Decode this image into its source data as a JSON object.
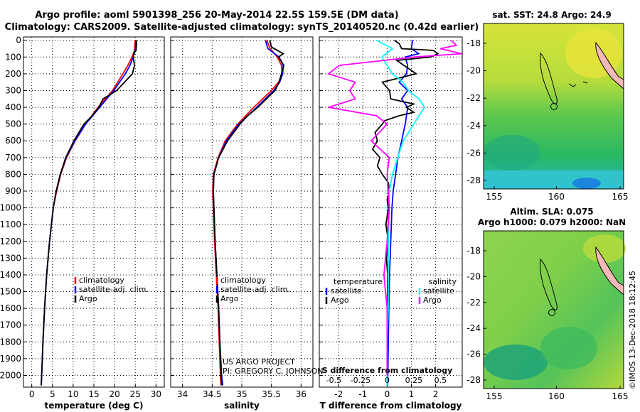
{
  "header": {
    "title_line1": "Argo profile: aoml 5901398_256 20-May-2014 22.5S 159.5E (DM data)",
    "title_line2": "Climatology: CARS2009. Satellite-adjusted climatology: synTS_20140520.nc (0.42d earlier)"
  },
  "colors": {
    "argo": "#000000",
    "climatology": "#ff0000",
    "satellite": "#0000ff",
    "sal_satellite": "#00ffff",
    "sal_argo": "#ff00ff",
    "coast": "#000000"
  },
  "pressure_ticks": [
    0,
    100,
    200,
    300,
    400,
    500,
    600,
    700,
    800,
    900,
    1000,
    1100,
    1200,
    1300,
    1400,
    1500,
    1600,
    1700,
    1800,
    1900,
    2000
  ],
  "chart_data": [
    {
      "type": "line",
      "name": "temperature",
      "xlabel": "temperature (deg C)",
      "ylabel": "pressure",
      "xlim": [
        -2,
        32
      ],
      "ylim": [
        2070,
        -20
      ],
      "xticks": [
        0,
        5,
        10,
        15,
        20,
        25,
        30
      ],
      "legend": {
        "placement": "lower-right",
        "entries": [
          "climatology",
          "satellite-adj. clim.",
          "Argo"
        ]
      },
      "series": [
        {
          "name": "climatology",
          "color_key": "climatology",
          "p": [
            0,
            20,
            60,
            100,
            150,
            200,
            300,
            400,
            500,
            600,
            700,
            800,
            900,
            1000,
            1200,
            1400,
            1600,
            1800,
            2000,
            2060
          ],
          "v": [
            25,
            24.9,
            24.8,
            24.2,
            23.2,
            22,
            19.5,
            16,
            13,
            10.5,
            8.4,
            7,
            6,
            5.2,
            4.3,
            3.6,
            3.1,
            2.7,
            2.4,
            2.3
          ]
        },
        {
          "name": "satellite-adj. clim.",
          "color_key": "satellite",
          "p": [
            0,
            20,
            60,
            100,
            150,
            200,
            300,
            400,
            500,
            600,
            700,
            800,
            900,
            1000,
            1200,
            1400,
            1600,
            1800,
            2000,
            2060
          ],
          "v": [
            25.2,
            25.1,
            25,
            24.5,
            23.7,
            22.6,
            19.8,
            16.4,
            13,
            10.4,
            8.3,
            6.9,
            5.9,
            5.2,
            4.3,
            3.6,
            3.1,
            2.7,
            2.4,
            2.3
          ]
        },
        {
          "name": "Argo",
          "color_key": "argo",
          "p": [
            0,
            20,
            60,
            80,
            100,
            150,
            200,
            300,
            350,
            400,
            450,
            500,
            600,
            700,
            800,
            900,
            1000,
            1200,
            1400,
            1600,
            1800,
            2000,
            2060
          ],
          "v": [
            25.3,
            25.3,
            25.2,
            24.6,
            24.5,
            24.8,
            24.3,
            20.5,
            17.2,
            16.2,
            14.6,
            12.6,
            10.2,
            8.2,
            6.9,
            5.9,
            5.2,
            4.3,
            3.6,
            3.1,
            2.7,
            2.4,
            2.3
          ]
        }
      ]
    },
    {
      "type": "line",
      "name": "salinity",
      "xlabel": "salinity",
      "ylabel": "pressure",
      "xlim": [
        33.8,
        36.2
      ],
      "ylim": [
        2070,
        -20
      ],
      "xticks": [
        34,
        34.5,
        35,
        35.5,
        36
      ],
      "xtick_labels": [
        "34",
        "34.5",
        "35",
        "35.5",
        "36"
      ],
      "legend": {
        "placement": "lower-right",
        "entries": [
          "climatology",
          "satellite-adj. clim.",
          "Argo"
        ]
      },
      "series": [
        {
          "name": "climatology",
          "color_key": "climatology",
          "p": [
            0,
            50,
            100,
            150,
            200,
            250,
            300,
            400,
            500,
            600,
            700,
            800,
            900,
            1000,
            1200,
            1400,
            1600,
            1800,
            2000,
            2060
          ],
          "v": [
            35.42,
            35.48,
            35.6,
            35.67,
            35.68,
            35.62,
            35.5,
            35.2,
            34.93,
            34.72,
            34.6,
            34.52,
            34.51,
            34.52,
            34.54,
            34.57,
            34.6,
            34.62,
            34.64,
            34.65
          ]
        },
        {
          "name": "satellite-adj. clim.",
          "color_key": "satellite",
          "p": [
            0,
            50,
            100,
            150,
            200,
            250,
            300,
            400,
            500,
            600,
            700,
            800,
            900,
            1000,
            1200,
            1400,
            1600,
            1800,
            2000,
            2060
          ],
          "v": [
            35.4,
            35.44,
            35.63,
            35.7,
            35.69,
            35.64,
            35.54,
            35.25,
            34.95,
            34.74,
            34.61,
            34.53,
            34.52,
            34.53,
            34.55,
            34.58,
            34.61,
            34.63,
            34.66,
            34.68
          ]
        },
        {
          "name": "Argo",
          "color_key": "argo",
          "p": [
            0,
            40,
            80,
            100,
            150,
            200,
            250,
            300,
            400,
            450,
            500,
            600,
            700,
            800,
            900,
            1000,
            1200,
            1400,
            1600,
            1800,
            2000,
            2060
          ],
          "v": [
            35.47,
            35.5,
            35.7,
            35.62,
            35.71,
            35.67,
            35.63,
            35.56,
            35.27,
            35.1,
            34.97,
            34.76,
            34.61,
            34.53,
            34.52,
            34.53,
            34.55,
            34.58,
            34.61,
            34.63,
            34.65,
            34.66
          ]
        }
      ]
    },
    {
      "type": "line",
      "name": "difference_from_climatology",
      "xlabel": "T difference from climatology",
      "xlabel_top": "S difference from climatology",
      "xlim": [
        -2.8,
        3.1
      ],
      "ylim": [
        2070,
        -20
      ],
      "xticks": [
        -2,
        -1,
        0,
        1,
        2
      ],
      "xtick_labels": [
        "-2",
        "-1",
        "0",
        "1",
        "2"
      ],
      "s_ticks_labels": [
        "-0.5",
        "-0.25",
        "0",
        "0.25",
        "0.5"
      ],
      "s_ticks_x_T": [
        -2.2,
        -1.1,
        0,
        1.1,
        2.2
      ],
      "legend": {
        "placement": "lower",
        "temperature_title": "temperature",
        "salinity_title": "salinity",
        "temperature_entries": [
          "satellite",
          "Argo"
        ],
        "salinity_entries": [
          "satellite",
          "Argo"
        ]
      },
      "series": [
        {
          "name": "T satellite",
          "color_key": "satellite",
          "p": [
            0,
            50,
            80,
            100,
            150,
            200,
            250,
            300,
            350,
            400,
            450,
            500,
            600,
            700,
            800,
            900,
            1000,
            1200,
            1400,
            1600,
            1800,
            2000,
            2060
          ],
          "v": [
            1.05,
            1.0,
            1.3,
            0.75,
            0.85,
            0.8,
            0.5,
            0.85,
            0.6,
            0.85,
            0.8,
            0.75,
            0.6,
            0.45,
            0.35,
            0.25,
            0.2,
            0.15,
            0.1,
            0.07,
            0.05,
            0.03,
            0.02
          ]
        },
        {
          "name": "T Argo",
          "color_key": "argo",
          "p": [
            0,
            20,
            50,
            60,
            80,
            100,
            120,
            150,
            200,
            250,
            300,
            350,
            380,
            400,
            430,
            450,
            480,
            500,
            550,
            600,
            650,
            700,
            750,
            800,
            850,
            900,
            950,
            1000,
            1100,
            1200,
            1300,
            1400,
            1600,
            1800,
            2000,
            2060
          ],
          "v": [
            0.3,
            0.5,
            0.6,
            1.9,
            2.1,
            1.8,
            0.4,
            0.7,
            1.2,
            -0.2,
            0.1,
            0.15,
            1.1,
            0.8,
            1.1,
            0.5,
            -0.1,
            -0.2,
            -0.5,
            -0.4,
            -0.6,
            -0.3,
            -0.4,
            -0.2,
            0.05,
            0.1,
            0.0,
            0.05,
            -0.05,
            0.05,
            -0.03,
            0.02,
            0.01,
            0.0,
            0.0,
            0.0
          ]
        },
        {
          "name": "S satellite",
          "color_key": "sal_satellite",
          "p": [
            0,
            50,
            100,
            150,
            200,
            250,
            300,
            350,
            400,
            500,
            600,
            700,
            800,
            900,
            1000,
            1200,
            1400,
            1600,
            1800,
            2000,
            2060
          ],
          "v": [
            -0.1,
            0.05,
            -0.05,
            0.0,
            0.05,
            0.15,
            0.2,
            0.3,
            0.35,
            0.25,
            0.15,
            0.1,
            0.05,
            0.02,
            0.02,
            0.01,
            0.01,
            0.01,
            0.0,
            0.0,
            0.0
          ]
        },
        {
          "name": "S Argo",
          "color_key": "sal_argo",
          "p": [
            0,
            30,
            50,
            80,
            100,
            150,
            200,
            250,
            300,
            350,
            400,
            450,
            500,
            600,
            700,
            800,
            900,
            1000,
            1200,
            1400,
            1600,
            1800,
            2000
          ],
          "v": [
            0.6,
            0.65,
            0.5,
            0.7,
            0.25,
            -0.45,
            -0.55,
            -0.3,
            -0.35,
            -0.3,
            -0.55,
            -0.1,
            0.0,
            -0.15,
            0.02,
            0.0,
            0.01,
            0.02,
            0.0,
            -0.03,
            0.0,
            0.0,
            0.0
          ]
        }
      ]
    }
  ],
  "maps": {
    "sst": {
      "title": "sat. SST: 24.8 Argo: 24.9",
      "xticks": [
        "155",
        "160",
        "165"
      ],
      "yticks": [
        "-18",
        "-20",
        "-22",
        "-24",
        "-26",
        "-28"
      ]
    },
    "sla": {
      "title_line1": "Altim. SLA: 0.075",
      "title_line2": "Argo h1000: 0.079 h2000: NaN",
      "xticks": [
        "155",
        "160",
        "165"
      ],
      "yticks": [
        "-18",
        "-20",
        "-22",
        "-24",
        "-26",
        "-28"
      ]
    }
  },
  "credits": {
    "line1": "US ARGO PROJECT",
    "line2": "PI: GREGORY C. JOHNSON"
  },
  "watermark": "©IMOS 13-Dec-2018 18:12:45"
}
